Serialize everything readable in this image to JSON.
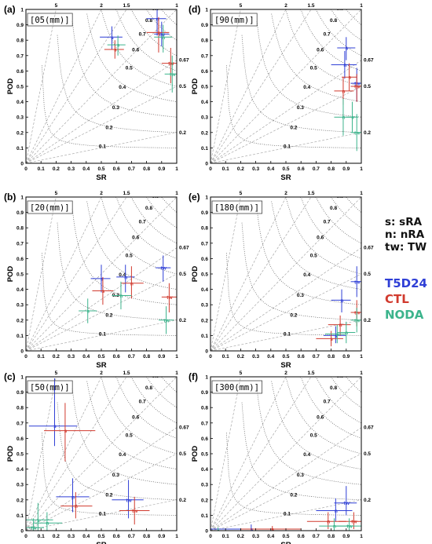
{
  "chart_data": [
    {
      "type": "scatter",
      "panel_label": "(a)",
      "threshold": "[05(mm)]",
      "xlabel": "SR",
      "ylabel": "POD",
      "xlim": [
        0,
        1
      ],
      "ylim": [
        0,
        1
      ],
      "points": [
        {
          "model": "T5D24",
          "label": "s",
          "x": 0.57,
          "y": 0.82,
          "x_range": [
            0.49,
            0.64
          ],
          "y_range": [
            0.74,
            0.89
          ]
        },
        {
          "model": "T5D24",
          "label": "n",
          "x": 0.87,
          "y": 0.94,
          "x_range": [
            0.8,
            0.93
          ],
          "y_range": [
            0.83,
            1.0
          ]
        },
        {
          "model": "T5D24",
          "label": "tw",
          "x": 0.9,
          "y": 0.84,
          "x_range": [
            0.85,
            0.95
          ],
          "y_range": [
            0.76,
            0.92
          ]
        },
        {
          "model": "CTL",
          "label": "s",
          "x": 0.59,
          "y": 0.74,
          "x_range": [
            0.52,
            0.65
          ],
          "y_range": [
            0.68,
            0.8
          ]
        },
        {
          "model": "CTL",
          "label": "n",
          "x": 0.88,
          "y": 0.85,
          "x_range": [
            0.8,
            0.95
          ],
          "y_range": [
            0.72,
            0.95
          ]
        },
        {
          "model": "CTL",
          "label": "tw",
          "x": 0.96,
          "y": 0.65,
          "x_range": [
            0.9,
            1.0
          ],
          "y_range": [
            0.52,
            0.75
          ]
        },
        {
          "model": "NODA",
          "label": "s",
          "x": 0.61,
          "y": 0.77,
          "x_range": [
            0.54,
            0.66
          ],
          "y_range": [
            0.7,
            0.83
          ]
        },
        {
          "model": "NODA",
          "label": "n",
          "x": 0.91,
          "y": 0.82,
          "x_range": [
            0.85,
            0.97
          ],
          "y_range": [
            0.72,
            0.9
          ]
        },
        {
          "model": "NODA",
          "label": "tw",
          "x": 0.97,
          "y": 0.58,
          "x_range": [
            0.92,
            1.0
          ],
          "y_range": [
            0.46,
            0.7
          ]
        }
      ]
    },
    {
      "type": "scatter",
      "panel_label": "(d)",
      "threshold": "[90(mm)]",
      "xlabel": "SR",
      "ylabel": "POD",
      "xlim": [
        0,
        1
      ],
      "ylim": [
        0,
        1
      ],
      "points": [
        {
          "model": "T5D24",
          "label": "s",
          "x": 0.9,
          "y": 0.75,
          "x_range": [
            0.84,
            0.96
          ],
          "y_range": [
            0.67,
            0.82
          ]
        },
        {
          "model": "T5D24",
          "label": "n",
          "x": 0.89,
          "y": 0.64,
          "x_range": [
            0.8,
            0.97
          ],
          "y_range": [
            0.55,
            0.73
          ]
        },
        {
          "model": "T5D24",
          "label": "tw",
          "x": 0.97,
          "y": 0.52,
          "x_range": [
            0.93,
            1.0
          ],
          "y_range": [
            0.4,
            0.62
          ]
        },
        {
          "model": "CTL",
          "label": "s",
          "x": 0.92,
          "y": 0.56,
          "x_range": [
            0.87,
            0.97
          ],
          "y_range": [
            0.47,
            0.65
          ]
        },
        {
          "model": "CTL",
          "label": "n",
          "x": 0.88,
          "y": 0.47,
          "x_range": [
            0.82,
            0.95
          ],
          "y_range": [
            0.38,
            0.56
          ]
        },
        {
          "model": "CTL",
          "label": "tw",
          "x": 0.97,
          "y": 0.5,
          "x_range": [
            0.93,
            1.0
          ],
          "y_range": [
            0.4,
            0.58
          ]
        },
        {
          "model": "NODA",
          "label": "s",
          "x": 0.94,
          "y": 0.3,
          "x_range": [
            0.9,
            0.98
          ],
          "y_range": [
            0.2,
            0.4
          ]
        },
        {
          "model": "NODA",
          "label": "n",
          "x": 0.88,
          "y": 0.3,
          "x_range": [
            0.82,
            0.95
          ],
          "y_range": [
            0.18,
            0.42
          ]
        },
        {
          "model": "NODA",
          "label": "tw",
          "x": 0.97,
          "y": 0.2,
          "x_range": [
            0.93,
            1.0
          ],
          "y_range": [
            0.08,
            0.32
          ]
        }
      ]
    },
    {
      "type": "scatter",
      "panel_label": "(b)",
      "threshold": "[20(mm)]",
      "xlabel": "SR",
      "ylabel": "POD",
      "xlim": [
        0,
        1
      ],
      "ylim": [
        0,
        1
      ],
      "points": [
        {
          "model": "T5D24",
          "label": "s",
          "x": 0.5,
          "y": 0.47,
          "x_range": [
            0.43,
            0.56
          ],
          "y_range": [
            0.38,
            0.56
          ]
        },
        {
          "model": "T5D24",
          "label": "n",
          "x": 0.66,
          "y": 0.48,
          "x_range": [
            0.6,
            0.72
          ],
          "y_range": [
            0.38,
            0.56
          ]
        },
        {
          "model": "T5D24",
          "label": "tw",
          "x": 0.91,
          "y": 0.54,
          "x_range": [
            0.86,
            0.96
          ],
          "y_range": [
            0.45,
            0.62
          ]
        },
        {
          "model": "CTL",
          "label": "s",
          "x": 0.51,
          "y": 0.39,
          "x_range": [
            0.44,
            0.58
          ],
          "y_range": [
            0.3,
            0.48
          ]
        },
        {
          "model": "CTL",
          "label": "n",
          "x": 0.7,
          "y": 0.44,
          "x_range": [
            0.63,
            0.78
          ],
          "y_range": [
            0.34,
            0.55
          ]
        },
        {
          "model": "CTL",
          "label": "tw",
          "x": 0.95,
          "y": 0.35,
          "x_range": [
            0.9,
            1.0
          ],
          "y_range": [
            0.25,
            0.44
          ]
        },
        {
          "model": "NODA",
          "label": "s",
          "x": 0.41,
          "y": 0.26,
          "x_range": [
            0.35,
            0.47
          ],
          "y_range": [
            0.18,
            0.34
          ]
        },
        {
          "model": "NODA",
          "label": "n",
          "x": 0.63,
          "y": 0.36,
          "x_range": [
            0.57,
            0.7
          ],
          "y_range": [
            0.27,
            0.45
          ]
        },
        {
          "model": "NODA",
          "label": "tw",
          "x": 0.93,
          "y": 0.2,
          "x_range": [
            0.88,
            0.98
          ],
          "y_range": [
            0.11,
            0.29
          ]
        }
      ]
    },
    {
      "type": "scatter",
      "panel_label": "(e)",
      "threshold": "[180(mm)]",
      "xlabel": "SR",
      "ylabel": "POD",
      "xlim": [
        0,
        1
      ],
      "ylim": [
        0,
        1
      ],
      "points": [
        {
          "model": "T5D24",
          "label": "s",
          "x": 0.83,
          "y": 0.1,
          "x_range": [
            0.75,
            0.9
          ],
          "y_range": [
            0.05,
            0.16
          ]
        },
        {
          "model": "T5D24",
          "label": "n",
          "x": 0.87,
          "y": 0.33,
          "x_range": [
            0.8,
            0.93
          ],
          "y_range": [
            0.25,
            0.4
          ]
        },
        {
          "model": "T5D24",
          "label": "tw",
          "x": 0.97,
          "y": 0.45,
          "x_range": [
            0.93,
            1.0
          ],
          "y_range": [
            0.35,
            0.55
          ]
        },
        {
          "model": "CTL",
          "label": "s",
          "x": 0.8,
          "y": 0.08,
          "x_range": [
            0.7,
            0.88
          ],
          "y_range": [
            0.03,
            0.13
          ]
        },
        {
          "model": "CTL",
          "label": "n",
          "x": 0.86,
          "y": 0.17,
          "x_range": [
            0.78,
            0.93
          ],
          "y_range": [
            0.1,
            0.23
          ]
        },
        {
          "model": "CTL",
          "label": "tw",
          "x": 0.97,
          "y": 0.25,
          "x_range": [
            0.93,
            1.0
          ],
          "y_range": [
            0.16,
            0.33
          ]
        },
        {
          "model": "NODA",
          "label": "s",
          "x": 0.84,
          "y": 0.11,
          "x_range": [
            0.76,
            0.9
          ],
          "y_range": [
            0.05,
            0.17
          ]
        },
        {
          "model": "NODA",
          "label": "n",
          "x": 0.9,
          "y": 0.12,
          "x_range": [
            0.84,
            0.96
          ],
          "y_range": [
            0.05,
            0.19
          ]
        },
        {
          "model": "NODA",
          "label": "tw",
          "x": 0.97,
          "y": 0.2,
          "x_range": [
            0.93,
            1.0
          ],
          "y_range": [
            0.12,
            0.28
          ]
        }
      ]
    },
    {
      "type": "scatter",
      "panel_label": "(c)",
      "threshold": "[50(mm)]",
      "xlabel": "SR",
      "ylabel": "POD",
      "xlim": [
        0,
        1
      ],
      "ylim": [
        0,
        1
      ],
      "points": [
        {
          "model": "T5D24",
          "label": "s",
          "x": 0.19,
          "y": 0.68,
          "x_range": [
            0.02,
            0.34
          ],
          "y_range": [
            0.55,
            0.99
          ]
        },
        {
          "model": "T5D24",
          "label": "n",
          "x": 0.31,
          "y": 0.22,
          "x_range": [
            0.2,
            0.42
          ],
          "y_range": [
            0.12,
            0.34
          ]
        },
        {
          "model": "T5D24",
          "label": "tw",
          "x": 0.68,
          "y": 0.2,
          "x_range": [
            0.57,
            0.78
          ],
          "y_range": [
            0.08,
            0.33
          ]
        },
        {
          "model": "CTL",
          "label": "s",
          "x": 0.26,
          "y": 0.65,
          "x_range": [
            0.12,
            0.46
          ],
          "y_range": [
            0.45,
            0.83
          ]
        },
        {
          "model": "CTL",
          "label": "n",
          "x": 0.33,
          "y": 0.16,
          "x_range": [
            0.23,
            0.44
          ],
          "y_range": [
            0.08,
            0.25
          ]
        },
        {
          "model": "CTL",
          "label": "tw",
          "x": 0.72,
          "y": 0.13,
          "x_range": [
            0.62,
            0.82
          ],
          "y_range": [
            0.04,
            0.22
          ]
        },
        {
          "model": "NODA",
          "label": "s",
          "x": 0.08,
          "y": 0.07,
          "x_range": [
            0.0,
            0.18
          ],
          "y_range": [
            0.0,
            0.18
          ]
        },
        {
          "model": "NODA",
          "label": "n",
          "x": 0.14,
          "y": 0.05,
          "x_range": [
            0.05,
            0.24
          ],
          "y_range": [
            0.0,
            0.12
          ]
        },
        {
          "model": "NODA",
          "label": "tw",
          "x": 0.05,
          "y": 0.02,
          "x_range": [
            0.0,
            0.12
          ],
          "y_range": [
            0.0,
            0.08
          ]
        }
      ]
    },
    {
      "type": "scatter",
      "panel_label": "(f)",
      "threshold": "[300(mm)]",
      "xlabel": "SR",
      "ylabel": "POD",
      "xlim": [
        0,
        1
      ],
      "ylim": [
        0,
        1
      ],
      "points": [
        {
          "model": "T5D24",
          "label": "s",
          "x": 0.27,
          "y": 0.01,
          "x_range": [
            0.0,
            0.45
          ],
          "y_range": [
            0.0,
            0.04
          ]
        },
        {
          "model": "T5D24",
          "label": "n",
          "x": 0.83,
          "y": 0.13,
          "x_range": [
            0.7,
            0.94
          ],
          "y_range": [
            0.06,
            0.21
          ]
        },
        {
          "model": "T5D24",
          "label": "tw",
          "x": 0.9,
          "y": 0.18,
          "x_range": [
            0.82,
            0.97
          ],
          "y_range": [
            0.1,
            0.29
          ]
        },
        {
          "model": "CTL",
          "label": "s",
          "x": 0.41,
          "y": 0.01,
          "x_range": [
            0.2,
            0.6
          ],
          "y_range": [
            0.0,
            0.03
          ]
        },
        {
          "model": "CTL",
          "label": "n",
          "x": 0.78,
          "y": 0.06,
          "x_range": [
            0.64,
            0.9
          ],
          "y_range": [
            0.01,
            0.12
          ]
        },
        {
          "model": "CTL",
          "label": "tw",
          "x": 0.95,
          "y": 0.06,
          "x_range": [
            0.85,
            1.0
          ],
          "y_range": [
            0.01,
            0.12
          ]
        },
        {
          "model": "NODA",
          "label": "s",
          "x": 0.05,
          "y": 0.0,
          "x_range": [
            0.0,
            0.2
          ],
          "y_range": [
            0.0,
            0.02
          ]
        },
        {
          "model": "NODA",
          "label": "n",
          "x": 0.82,
          "y": 0.03,
          "x_range": [
            0.72,
            0.92
          ],
          "y_range": [
            0.0,
            0.08
          ]
        },
        {
          "model": "NODA",
          "label": "tw",
          "x": 0.92,
          "y": 0.03,
          "x_range": [
            0.82,
            1.0
          ],
          "y_range": [
            0.0,
            0.08
          ]
        }
      ]
    }
  ],
  "axes": {
    "ticks": [
      "0",
      "0.1",
      "0.2",
      "0.3",
      "0.4",
      "0.5",
      "0.6",
      "0.7",
      "0.8",
      "0.9",
      "1"
    ],
    "tick_values": [
      0,
      0.1,
      0.2,
      0.3,
      0.4,
      0.5,
      0.6,
      0.7,
      0.8,
      0.9,
      1
    ],
    "bias_values": [
      5,
      2,
      1.5,
      1
    ],
    "bias_labels": [
      "5",
      "2",
      "1.5",
      "1"
    ],
    "csi_values": [
      0.1,
      0.2,
      0.3,
      0.4,
      0.5,
      0.6,
      0.7,
      0.8,
      0.9
    ],
    "csi_labels": [
      "0.1",
      "0.2",
      "0.3",
      "0.4",
      "0.5",
      "0.6",
      "0.7",
      "0.8",
      "0.9"
    ],
    "right_bias_values": [
      0.67,
      0.5,
      0.2
    ],
    "right_bias_labels": [
      "0.67",
      "0.5",
      "0.2"
    ]
  },
  "legend": {
    "abbreviations": [
      {
        "code": "s",
        "name": "sRA"
      },
      {
        "code": "n",
        "name": "nRA"
      },
      {
        "code": "tw",
        "name": "TW"
      }
    ],
    "models": [
      {
        "name": "T5D24",
        "color": "#2f3fd6"
      },
      {
        "name": "CTL",
        "color": "#d13a2e"
      },
      {
        "name": "NODA",
        "color": "#3cb48c"
      }
    ]
  }
}
